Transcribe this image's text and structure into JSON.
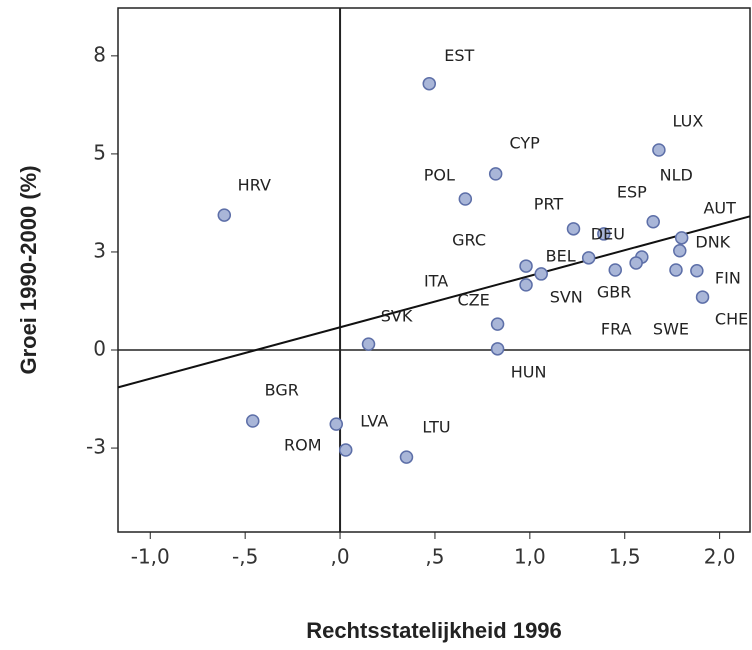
{
  "chart_data": {
    "type": "scatter",
    "xlabel": "Rechtsstatelijkheid 1996",
    "ylabel": "Groei 1990-2000 (%)",
    "labels": [
      "EST",
      "LUX",
      "CYP",
      "POL",
      "HRV",
      "NLD",
      "ESP",
      "AUT",
      "DNK",
      "PRT",
      "DEU",
      "GRC",
      "BEL",
      "ITA",
      "FIN",
      "GBR",
      "CZE",
      "SVN",
      "SVK",
      "FRA",
      "SWE",
      "CHE",
      "HUN",
      "BGR",
      "LVA",
      "ROM",
      "LTU"
    ],
    "x": [
      0.47,
      1.68,
      0.82,
      0.66,
      -0.61,
      1.65,
      1.59,
      1.8,
      1.79,
      1.23,
      1.39,
      0.98,
      1.31,
      0.98,
      1.88,
      1.56,
      0.83,
      1.06,
      0.15,
      1.45,
      1.77,
      1.91,
      0.83,
      -0.46,
      -0.02,
      0.03,
      0.35
    ],
    "y": [
      6.79,
      5.1,
      4.49,
      3.85,
      3.44,
      3.27,
      2.37,
      2.86,
      2.53,
      3.09,
      2.96,
      2.14,
      2.35,
      1.66,
      2.02,
      2.22,
      0.66,
      1.94,
      0.15,
      2.04,
      2.04,
      1.35,
      0.03,
      -1.81,
      -1.89,
      -2.55,
      -2.73
    ],
    "color": "#a9b6d8",
    "edgecolor": "#5d6fa8",
    "trend": {
      "slope": 1.31,
      "intercept": 0.58
    },
    "xlim": [
      -1.17,
      2.16
    ],
    "ylim": [
      -4.64,
      8.72
    ],
    "xticks": [
      {
        "value": -1.0,
        "label": "-1,0"
      },
      {
        "value": -0.5,
        "label": "-,5"
      },
      {
        "value": 0,
        "label": ",0"
      },
      {
        "value": 0.5,
        "label": ",5"
      },
      {
        "value": 1.0,
        "label": "1,0"
      },
      {
        "value": 1.5,
        "label": "1,5"
      },
      {
        "value": 2.0,
        "label": "2,0"
      }
    ],
    "yticks": [
      {
        "value": -2.5,
        "label": "-3"
      },
      0,
      {
        "value": 2.5,
        "label": "3"
      },
      {
        "value": 5,
        "label": "5"
      },
      {
        "value": 7.5,
        "label": "8"
      }
    ]
  }
}
